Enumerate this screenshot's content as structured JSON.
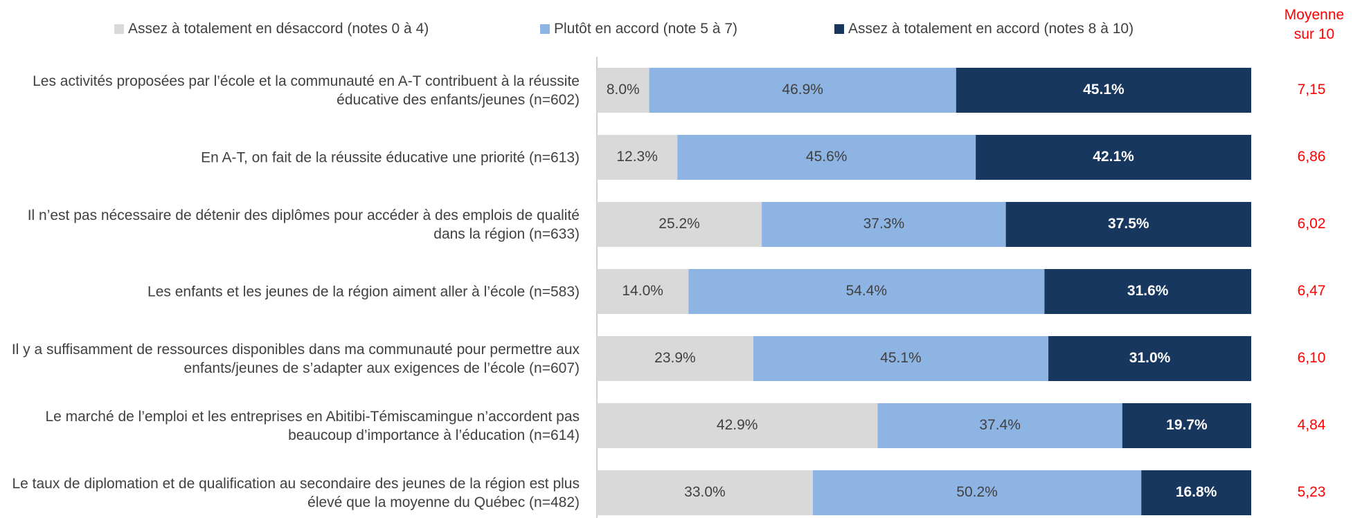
{
  "chart_data": {
    "type": "bar",
    "orientation": "horizontal",
    "stacked": true,
    "categories": [
      "Les activités proposées par l’école et la communauté en A-T contribuent à la réussite éducative des enfants/jeunes (n=602)",
      "En A-T, on fait de la réussite éducative une priorité (n=613)",
      "Il n’est pas nécessaire de détenir des diplômes pour accéder à des emplois de qualité dans la région (n=633)",
      "Les enfants et les jeunes de la région aiment aller à l’école (n=583)",
      "Il y a suffisamment de ressources disponibles dans ma communauté pour permettre aux enfants/jeunes de s’adapter aux exigences de l’école (n=607)",
      "Le marché de l’emploi et les entreprises en Abitibi-Témiscamingue n’accordent pas beaucoup d’importance à l’éducation (n=614)",
      "Le taux de diplomation et de qualification au secondaire des jeunes de la région est plus élevé que la moyenne du Québec (n=482)"
    ],
    "series": [
      {
        "name": "Assez à totalement en désaccord (notes 0 à 4)",
        "color": "#d9d9d9",
        "values": [
          8.0,
          12.3,
          25.2,
          14.0,
          23.9,
          42.9,
          33.0
        ],
        "value_labels": [
          "8.0%",
          "12.3%",
          "25.2%",
          "14.0%",
          "23.9%",
          "42.9%",
          "33.0%"
        ]
      },
      {
        "name": "Plutôt en accord (note 5 à 7)",
        "color": "#8eb4e3",
        "values": [
          46.9,
          45.6,
          37.3,
          54.4,
          45.1,
          37.4,
          50.2
        ],
        "value_labels": [
          "46.9%",
          "45.6%",
          "37.3%",
          "54.4%",
          "45.1%",
          "37.4%",
          "50.2%"
        ]
      },
      {
        "name": "Assez à totalement en accord (notes 8 à 10)",
        "color": "#17375e",
        "values": [
          45.1,
          42.1,
          37.5,
          31.6,
          31.0,
          19.7,
          16.8
        ],
        "value_labels": [
          "45.1%",
          "42.1%",
          "37.5%",
          "31.6%",
          "31.0%",
          "19.7%",
          "16.8%"
        ]
      }
    ],
    "xlim": [
      0,
      100
    ],
    "means": {
      "title": "Moyenne sur 10",
      "color": "#ff0000",
      "values": [
        7.15,
        6.86,
        6.02,
        6.47,
        6.1,
        4.84,
        5.23
      ],
      "value_labels": [
        "7,15",
        "6,86",
        "6,02",
        "6,47",
        "6,10",
        "4,84",
        "5,23"
      ]
    }
  }
}
